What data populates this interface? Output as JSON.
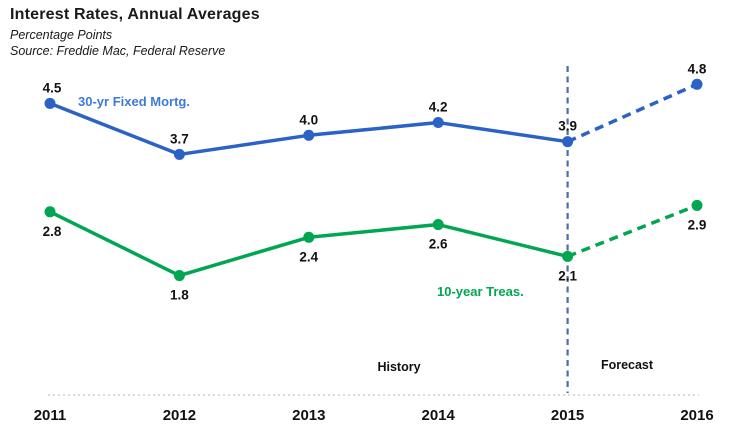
{
  "header": {
    "title": "Interest Rates, Annual Averages",
    "subtitle": "Percentage Points",
    "source": "Source: Freddie Mac, Federal Reserve"
  },
  "chart_data": {
    "type": "line",
    "title": "Interest Rates, Annual Averages",
    "subtitle": "Percentage Points",
    "source": "Source: Freddie Mac, Federal Reserve",
    "x": [
      2011,
      2012,
      2013,
      2014,
      2015,
      2016
    ],
    "x_tick_labels": [
      "2011",
      "2012",
      "2013",
      "2014",
      "2015",
      "2016"
    ],
    "forecast_from": 2015,
    "series": [
      {
        "name": "30-yr Fixed Mortg.",
        "values": [
          4.5,
          3.7,
          4.0,
          4.2,
          3.9,
          4.8
        ],
        "color": "#2b62c6",
        "label_color": "#3d7ad8",
        "value_label_position": "above"
      },
      {
        "name": "10-year Treas.",
        "values": [
          2.8,
          1.8,
          2.4,
          2.6,
          2.1,
          2.9
        ],
        "color": "#00a651",
        "label_color": "#00a651",
        "value_label_position": "below"
      }
    ],
    "annotations": {
      "history": "History",
      "forecast": "Forecast"
    },
    "divider_color": "#4a6fa5",
    "axis_color": "#c4c4c4",
    "value_label_color": "#111111",
    "tick_label_color": "#111111",
    "grid": false,
    "legend_position": "inline-labels"
  }
}
